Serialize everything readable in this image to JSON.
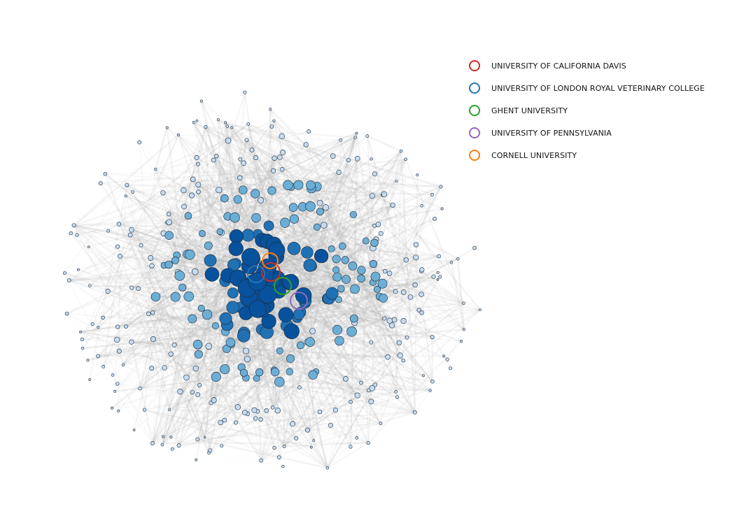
{
  "legend": [
    {
      "label": "UNIVERSITY OF CALIFORNIA DAVIS",
      "color": "#d62728"
    },
    {
      "label": "UNIVERSITY OF LONDON ROYAL VETERINARY COLLEGE",
      "color": "#1f77b4"
    },
    {
      "label": "GHENT UNIVERSITY",
      "color": "#2ca02c"
    },
    {
      "label": "UNIVERSITY OF PENNSYLVANIA",
      "color": "#9467bd"
    },
    {
      "label": "CORNELL UNIVERSITY",
      "color": "#ff7f0e"
    }
  ],
  "colors": {
    "edge": "#b0b0b0",
    "node_outline": "#1b2a3a",
    "node_light": "#c6dbef",
    "node_mid": "#6baed6",
    "node_dark": "#2171b5",
    "node_darkest": "#08519c"
  }
}
